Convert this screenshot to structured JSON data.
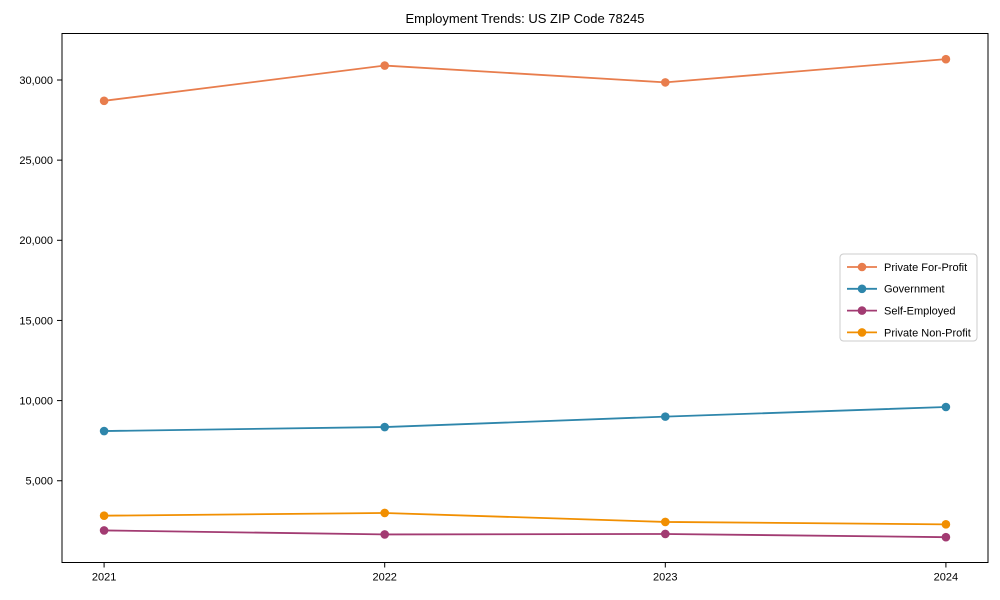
{
  "chart_data": {
    "type": "line",
    "title": "Employment Trends: US ZIP Code 78245",
    "xlabel": "",
    "ylabel": "",
    "categories": [
      "2021",
      "2022",
      "2023",
      "2024"
    ],
    "x": [
      2021,
      2022,
      2023,
      2024
    ],
    "series": [
      {
        "name": "Private For-Profit",
        "color": "#E87D4D",
        "values": [
          28700,
          30900,
          29850,
          31300
        ]
      },
      {
        "name": "Government",
        "color": "#2E86AB",
        "values": [
          8100,
          8350,
          9000,
          9600
        ]
      },
      {
        "name": "Self-Employed",
        "color": "#A23B72",
        "values": [
          1900,
          1650,
          1680,
          1480
        ]
      },
      {
        "name": "Private Non-Profit",
        "color": "#F18F01",
        "values": [
          2820,
          2990,
          2430,
          2280
        ]
      }
    ],
    "xlim": [
      2020.85,
      2024.15
    ],
    "ylim": [
      -100,
      32900
    ],
    "ytick_values": [
      5000,
      10000,
      15000,
      20000,
      25000,
      30000
    ],
    "ytick_labels": [
      "5,000",
      "10,000",
      "15,000",
      "20,000",
      "25,000",
      "30,000"
    ],
    "grid": false,
    "legend_position": "right-middle",
    "marker": "circle",
    "axis_color": "#000000",
    "legend_border_color": "#cccccc",
    "legend_background": "#ffffff",
    "background": "#ffffff"
  }
}
